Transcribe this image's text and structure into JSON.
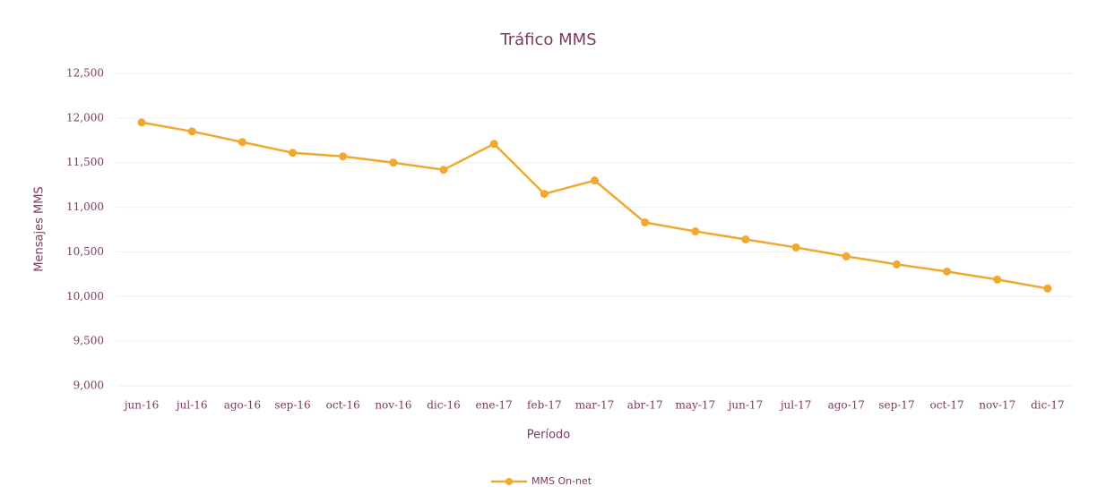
{
  "chart_data": {
    "type": "line",
    "title": "Tráfico MMS",
    "x_label": "Período",
    "y_label": "Mensajes MMS",
    "categories": [
      "jun-16",
      "jul-16",
      "ago-16",
      "sep-16",
      "oct-16",
      "nov-16",
      "dic-16",
      "ene-17",
      "feb-17",
      "mar-17",
      "abr-17",
      "may-17",
      "jun-17",
      "jul-17",
      "ago-17",
      "sep-17",
      "oct-17",
      "nov-17",
      "dic-17"
    ],
    "series": [
      {
        "name": "MMS On-net",
        "color": "#f0a830",
        "values": [
          11950,
          11850,
          11730,
          11610,
          11570,
          11500,
          11420,
          11710,
          11150,
          11300,
          10830,
          10730,
          10640,
          10550,
          10450,
          10360,
          10280,
          10190,
          10090
        ]
      }
    ],
    "ylim": [
      9000,
      12500
    ],
    "yticks": [
      {
        "value": 9000,
        "label": "9,000"
      },
      {
        "value": 9500,
        "label": "9,500"
      },
      {
        "value": 10000,
        "label": "10,000"
      },
      {
        "value": 10500,
        "label": "10,500"
      },
      {
        "value": 11000,
        "label": "11,000"
      },
      {
        "value": 11500,
        "label": "11,500"
      },
      {
        "value": 12000,
        "label": "12,000"
      },
      {
        "value": 12500,
        "label": "12,500"
      }
    ],
    "grid": true,
    "legend": "bottom"
  }
}
